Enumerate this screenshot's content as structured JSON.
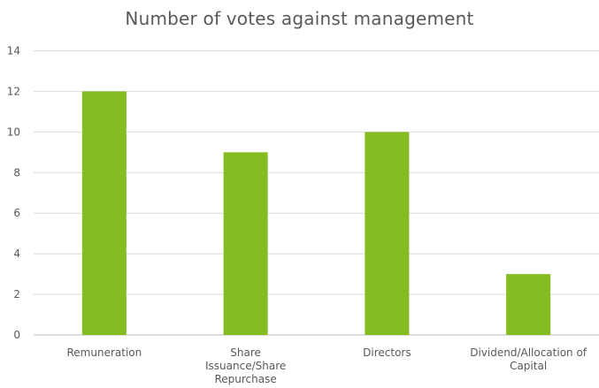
{
  "chart_data": {
    "type": "bar",
    "title": "Number of votes against management",
    "categories": [
      [
        "Remuneration"
      ],
      [
        "Share",
        "Issuance/Share",
        "Repurchase"
      ],
      [
        "Directors"
      ],
      [
        "Dividend/Allocation of",
        "Capital"
      ]
    ],
    "values": [
      12,
      9,
      10,
      3
    ],
    "ylim": [
      0,
      14
    ],
    "yticks": [
      0,
      2,
      4,
      6,
      8,
      10,
      12,
      14
    ],
    "xlabel": "",
    "ylabel": "",
    "grid": true,
    "legend": "none",
    "colors": {
      "bar": "#85bc22",
      "grid": "#d9d9d9",
      "axis": "#bfbfbf",
      "text": "#595959"
    }
  }
}
